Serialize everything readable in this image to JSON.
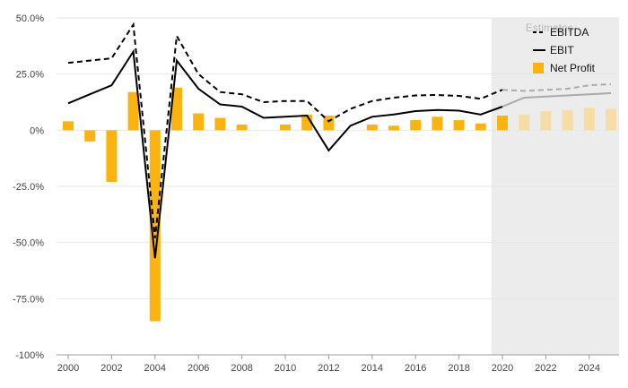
{
  "chart_data": {
    "type": "bar+line",
    "title": "",
    "xlabel": "",
    "ylabel": "",
    "ylim": [
      -100,
      50
    ],
    "y_unit": "%",
    "y_ticks": [
      "50.0%",
      "25.0%",
      "0%",
      "-25.0%",
      "-50.0%",
      "-75.0%",
      "-100%"
    ],
    "y_tick_values": [
      50,
      25,
      0,
      -25,
      -50,
      -75,
      -100
    ],
    "x_tick_labels": [
      "2000",
      "2002",
      "2004",
      "2006",
      "2008",
      "2010",
      "2012",
      "2014",
      "2016",
      "2018",
      "2020",
      "2022",
      "2024"
    ],
    "years": [
      2000,
      2001,
      2002,
      2003,
      2004,
      2005,
      2006,
      2007,
      2008,
      2009,
      2010,
      2011,
      2012,
      2013,
      2014,
      2015,
      2016,
      2017,
      2018,
      2019,
      2020,
      2021,
      2022,
      2023,
      2024,
      2025
    ],
    "estimate_label": "Estimates",
    "estimate_from": 2020,
    "grid": true,
    "legend_position": "top-right",
    "series": [
      {
        "name": "EBITDA",
        "kind": "line",
        "style": "dashed",
        "color": "#000000",
        "estimate_color": "#aaaaaa",
        "values": [
          30,
          31,
          32,
          47,
          -48,
          42,
          25,
          17,
          16,
          12.5,
          13,
          13,
          4,
          9.5,
          13,
          14.5,
          15.5,
          15.7,
          15.3,
          14,
          18,
          17.5,
          18,
          18.5,
          20,
          20.5
        ]
      },
      {
        "name": "EBIT",
        "kind": "line",
        "style": "solid",
        "color": "#000000",
        "estimate_color": "#aaaaaa",
        "values": [
          12,
          16,
          20,
          35,
          -57,
          31,
          18.5,
          11.5,
          10.5,
          5.5,
          6,
          6.5,
          -9,
          2,
          6,
          7,
          8.5,
          9,
          8.7,
          7,
          10.5,
          14.5,
          15,
          15.5,
          16,
          16.5
        ]
      },
      {
        "name": "Net Profit",
        "kind": "bar",
        "color": "#fbb40f",
        "estimate_color": "#f6dda6",
        "values": [
          4,
          -5,
          -23,
          17,
          -85,
          19,
          7.5,
          5.5,
          2.5,
          null,
          2.5,
          7,
          6.5,
          null,
          2.5,
          2,
          4.5,
          6,
          4.5,
          3,
          6.5,
          7,
          8.5,
          9,
          10,
          9.5
        ]
      }
    ]
  }
}
